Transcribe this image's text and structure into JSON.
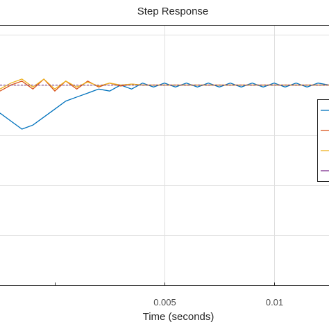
{
  "chart_data": {
    "type": "line",
    "title": "Step Response",
    "xlabel": "Time (seconds)",
    "ylabel": "",
    "xlim": [
      -0.0025,
      0.0125
    ],
    "ylim": [
      0,
      1.3
    ],
    "xticks": [
      0.005,
      0.01
    ],
    "xtick_labels": [
      "0.005",
      "0.01"
    ],
    "grid": true,
    "legend_position": "right",
    "steady_state": 1.0,
    "series": [
      {
        "color": "#0072BD",
        "x": [
          -0.0025,
          -0.002,
          -0.0015,
          -0.001,
          -0.0005,
          0.0,
          0.0005,
          0.001,
          0.0015,
          0.002,
          0.0025,
          0.003,
          0.0035,
          0.004,
          0.0045,
          0.005,
          0.0055,
          0.006,
          0.0065,
          0.007,
          0.0075,
          0.008,
          0.0085,
          0.009,
          0.0095,
          0.01,
          0.0105,
          0.011,
          0.0115,
          0.012,
          0.0125
        ],
        "y": [
          0.86,
          0.82,
          0.78,
          0.8,
          0.84,
          0.88,
          0.92,
          0.94,
          0.96,
          0.98,
          0.97,
          1.0,
          0.98,
          1.01,
          0.99,
          1.01,
          0.99,
          1.01,
          0.99,
          1.01,
          0.99,
          1.01,
          0.99,
          1.01,
          0.99,
          1.01,
          0.99,
          1.01,
          0.99,
          1.01,
          1.0
        ]
      },
      {
        "color": "#D95319",
        "x": [
          -0.0025,
          -0.002,
          -0.0015,
          -0.001,
          -0.0005,
          0.0,
          0.0005,
          0.001,
          0.0015,
          0.002,
          0.0025,
          0.003,
          0.0035,
          0.004,
          0.005,
          0.006,
          0.008,
          0.01,
          0.0125
        ],
        "y": [
          0.97,
          1.0,
          1.02,
          0.98,
          1.03,
          0.97,
          1.02,
          0.98,
          1.02,
          0.99,
          1.01,
          0.995,
          1.005,
          1.0,
          1.0,
          1.0,
          1.0,
          1.0,
          1.0
        ]
      },
      {
        "color": "#EDB120",
        "x": [
          -0.0025,
          -0.002,
          -0.0015,
          -0.001,
          -0.0005,
          0.0,
          0.0005,
          0.001,
          0.0015,
          0.002,
          0.0025,
          0.003,
          0.0035,
          0.004,
          0.005,
          0.006,
          0.008,
          0.01,
          0.0125
        ],
        "y": [
          0.98,
          1.01,
          1.03,
          0.99,
          1.03,
          0.98,
          1.02,
          0.99,
          1.015,
          0.995,
          1.01,
          1.0,
          1.005,
          1.0,
          1.0,
          1.0,
          1.0,
          1.0,
          1.0
        ]
      },
      {
        "color": "#7E2F8E",
        "x": [
          -0.0025,
          0.0,
          0.0025,
          0.005,
          0.0075,
          0.01,
          0.0125
        ],
        "y": [
          1.0,
          1.0,
          1.0,
          1.0,
          1.0,
          1.0,
          1.0
        ]
      }
    ]
  }
}
